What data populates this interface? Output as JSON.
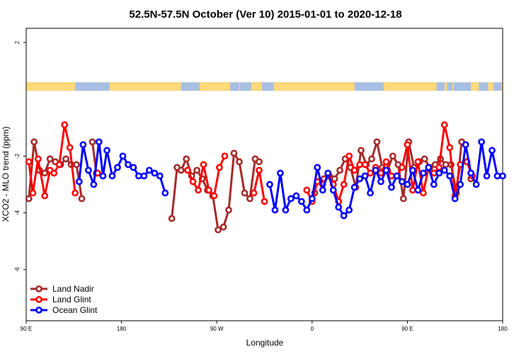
{
  "chart_data": {
    "type": "line",
    "title": "52.5N-57.5N October (Ver 10)   2015-01-01 to 2020-12-18",
    "xlabel": "Longitude",
    "ylabel": "XCO2 - MLO trend (ppm)",
    "xlim": [
      90,
      450
    ],
    "ylim": [
      -7.8,
      2.5
    ],
    "x_ticks": [
      {
        "value": 90,
        "label": "90 E"
      },
      {
        "value": 162,
        "label": "180"
      },
      {
        "value": 234,
        "label": "90 W"
      },
      {
        "value": 306,
        "label": "0"
      },
      {
        "value": 378,
        "label": "90 E"
      },
      {
        "value": 450,
        "label": "180"
      }
    ],
    "y_ticks": [
      {
        "value": 2,
        "label": "2"
      },
      {
        "value": -2,
        "label": "-2"
      },
      {
        "value": -4,
        "label": "-4"
      },
      {
        "value": -6,
        "label": "-6"
      }
    ],
    "land_strip": {
      "ymin": 0.3,
      "ymax": 0.6,
      "ocean_color": "#a7bfe2",
      "land_color": "#ffd97a",
      "land_spans": [
        [
          90,
          127
        ],
        [
          153,
          207
        ],
        [
          221,
          244
        ],
        [
          251,
          251.5
        ],
        [
          260,
          268
        ],
        [
          277,
          338
        ],
        [
          360,
          400
        ],
        [
          406,
          408
        ],
        [
          412,
          413
        ],
        [
          426,
          432
        ],
        [
          439,
          443
        ],
        [
          449,
          450
        ]
      ]
    },
    "legend_position": "bottom-left",
    "series": [
      {
        "name": "Land Nadir",
        "color": "#a52a2a",
        "x": [
          92,
          96,
          100,
          104,
          108,
          112,
          116,
          120,
          124,
          128,
          132,
          140,
          143,
          200,
          204,
          207,
          211,
          215,
          219,
          223,
          227,
          231,
          235,
          239,
          243,
          247,
          251,
          255,
          259,
          263,
          266,
          308,
          315,
          319,
          323,
          327,
          331,
          335,
          339,
          343,
          347,
          351,
          355,
          359,
          363,
          367,
          371,
          375,
          379,
          383,
          387,
          391,
          395,
          399,
          403,
          407,
          411,
          415,
          419,
          426
        ],
        "y": [
          -3.5,
          -1.5,
          -2.5,
          -2.6,
          -2.1,
          -2.2,
          -2.3,
          -2.1,
          -2.3,
          -2.3,
          -3.5,
          -1.5,
          -2.6,
          -4.2,
          -2.4,
          -2.5,
          -2.1,
          -2.7,
          -2.5,
          -2.8,
          -3.2,
          -3.4,
          -4.6,
          -4.5,
          -3.9,
          -1.9,
          -2.2,
          -3.3,
          -3.5,
          -2.1,
          -2.2,
          -3.3,
          -2.8,
          -2.7,
          -2.8,
          -2.5,
          -2.1,
          -2.4,
          -3.1,
          -1.8,
          -2.3,
          -2.1,
          -1.5,
          -2.4,
          -2.5,
          -2.0,
          -2.3,
          -3.5,
          -1.5,
          -2.4,
          -2.2,
          -2.1,
          -2.4,
          -2.3,
          -2.1,
          -2.3,
          -2.3,
          -3.3,
          -1.5,
          -2.8
        ]
      },
      {
        "name": "Land Glint",
        "color": "#ff0000",
        "x": [
          92,
          95,
          99,
          104,
          108,
          111,
          115,
          119,
          123,
          127,
          144,
          212,
          216,
          220,
          224,
          228,
          232,
          236,
          240,
          262,
          266,
          270,
          302,
          306,
          310,
          314,
          318,
          322,
          326,
          330,
          334,
          338,
          342,
          346,
          350,
          354,
          358,
          362,
          366,
          370,
          374,
          378,
          382,
          386,
          390,
          394,
          398,
          402,
          406,
          410,
          414,
          418,
          423,
          427
        ],
        "y": [
          -2.2,
          -3.3,
          -2.1,
          -3.4,
          -2.5,
          -2.6,
          -2.3,
          -0.9,
          -1.7,
          -3.3,
          -2.6,
          -2.5,
          -2.9,
          -3.2,
          -2.3,
          -3.2,
          -3.4,
          -2.4,
          -2.0,
          -3.3,
          -2.5,
          -3.6,
          -3.2,
          -3.6,
          -2.9,
          -3.0,
          -2.7,
          -3.0,
          -3.6,
          -3.0,
          -2.0,
          -2.5,
          -2.3,
          -2.3,
          -2.6,
          -2.4,
          -2.6,
          -2.2,
          -2.7,
          -2.7,
          -2.4,
          -1.6,
          -3.2,
          -2.2,
          -3.3,
          -2.4,
          -2.6,
          -2.4,
          -0.9,
          -1.7,
          -3.4,
          -2.3,
          -2.2,
          -2.7
        ]
      },
      {
        "name": "Ocean Glint",
        "color": "#0000ff",
        "x": [
          130,
          133,
          137,
          141,
          145,
          148,
          151,
          155,
          159,
          163,
          167,
          171,
          175,
          179,
          183,
          187,
          191,
          195,
          274,
          278,
          282,
          286,
          290,
          294,
          298,
          302,
          306,
          310,
          314,
          318,
          322,
          326,
          330,
          334,
          338,
          342,
          346,
          350,
          354,
          358,
          362,
          366,
          370,
          374,
          378,
          382,
          386,
          390,
          394,
          398,
          402,
          406,
          410,
          414,
          418,
          422,
          426,
          430,
          434,
          438,
          442,
          446,
          450
        ],
        "y": [
          -2.9,
          -1.6,
          -2.5,
          -3.0,
          -1.5,
          -2.7,
          -1.8,
          -2.7,
          -2.4,
          -2.0,
          -2.3,
          -2.4,
          -2.7,
          -2.7,
          -2.5,
          -2.6,
          -2.7,
          -3.3,
          -3.0,
          -3.9,
          -2.6,
          -3.9,
          -3.5,
          -3.4,
          -3.6,
          -3.9,
          -3.5,
          -2.4,
          -3.2,
          -2.6,
          -3.2,
          -3.8,
          -4.1,
          -3.9,
          -3.1,
          -2.8,
          -2.7,
          -3.3,
          -2.5,
          -2.9,
          -2.5,
          -3.1,
          -2.7,
          -2.9,
          -3.0,
          -2.5,
          -3.2,
          -2.6,
          -2.4,
          -3.0,
          -2.6,
          -2.5,
          -2.7,
          -3.5,
          -3.0,
          -1.6,
          -2.6,
          -3.0,
          -1.5,
          -2.7,
          -1.8,
          -2.7,
          -2.7
        ]
      }
    ]
  }
}
